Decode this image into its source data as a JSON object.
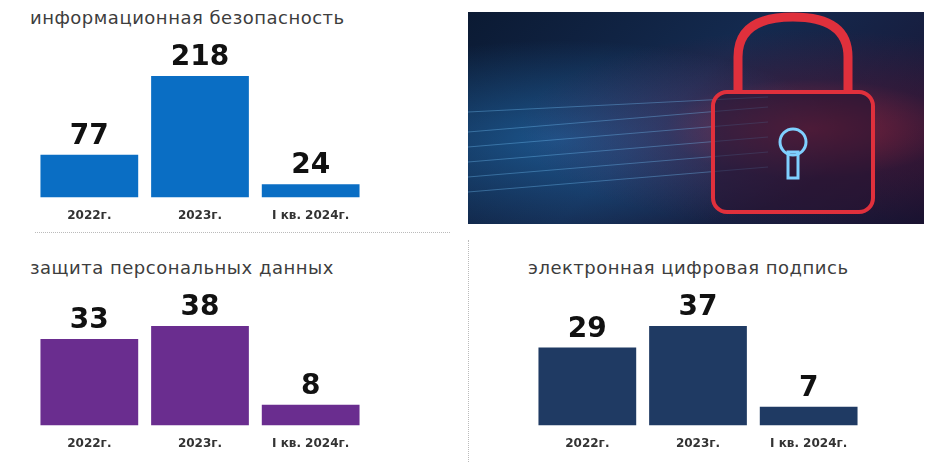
{
  "chart_data": [
    {
      "type": "bar",
      "title": "информационная безопасность",
      "categories": [
        "2022г.",
        "2023г.",
        "I кв. 2024г."
      ],
      "values": [
        77,
        218,
        24
      ],
      "color": "#0a6ec4",
      "ylim": [
        0,
        218
      ],
      "tick_labels": "x",
      "data_labels": true,
      "grid": false
    },
    {
      "type": "bar",
      "title": "защита персональных данных",
      "categories": [
        "2022г.",
        "2023г.",
        "I кв. 2024г."
      ],
      "values": [
        33,
        38,
        8
      ],
      "color": "#6a2d8f",
      "ylim": [
        0,
        38
      ],
      "tick_labels": "x",
      "data_labels": true,
      "grid": false
    },
    {
      "type": "bar",
      "title": "электронная цифровая подпись",
      "categories": [
        "2022г.",
        "2023г.",
        "I кв. 2024г."
      ],
      "values": [
        29,
        37,
        7
      ],
      "color": "#1f3a63",
      "ylim": [
        0,
        37
      ],
      "tick_labels": "x",
      "data_labels": true,
      "grid": false
    }
  ]
}
